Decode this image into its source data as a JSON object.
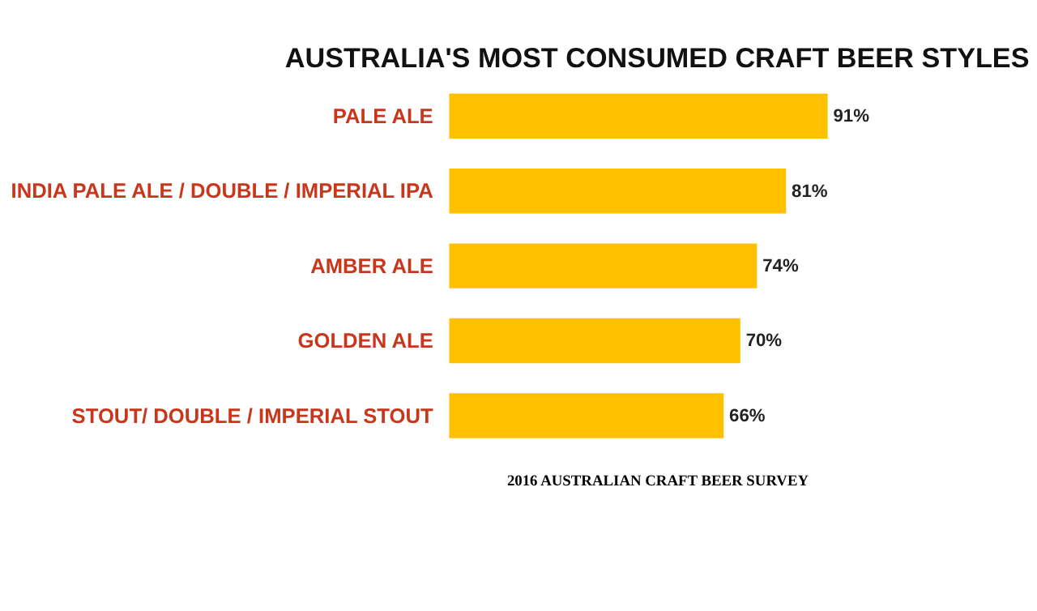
{
  "chart_data": {
    "type": "bar",
    "orientation": "horizontal",
    "title": "AUSTRALIA'S MOST CONSUMED CRAFT BEER STYLES",
    "categories": [
      "PALE ALE",
      "INDIA PALE ALE / DOUBLE / IMPERIAL IPA",
      "AMBER ALE",
      "GOLDEN ALE",
      "STOUT/ DOUBLE / IMPERIAL STOUT"
    ],
    "values": [
      91,
      81,
      74,
      70,
      66
    ],
    "value_labels": [
      "91%",
      "81%",
      "74%",
      "70%",
      "66%"
    ],
    "color": "#ffc000",
    "grid": false,
    "annotations": [
      "2016 AUSTRALIAN CRAFT BEER SURVEY"
    ]
  }
}
